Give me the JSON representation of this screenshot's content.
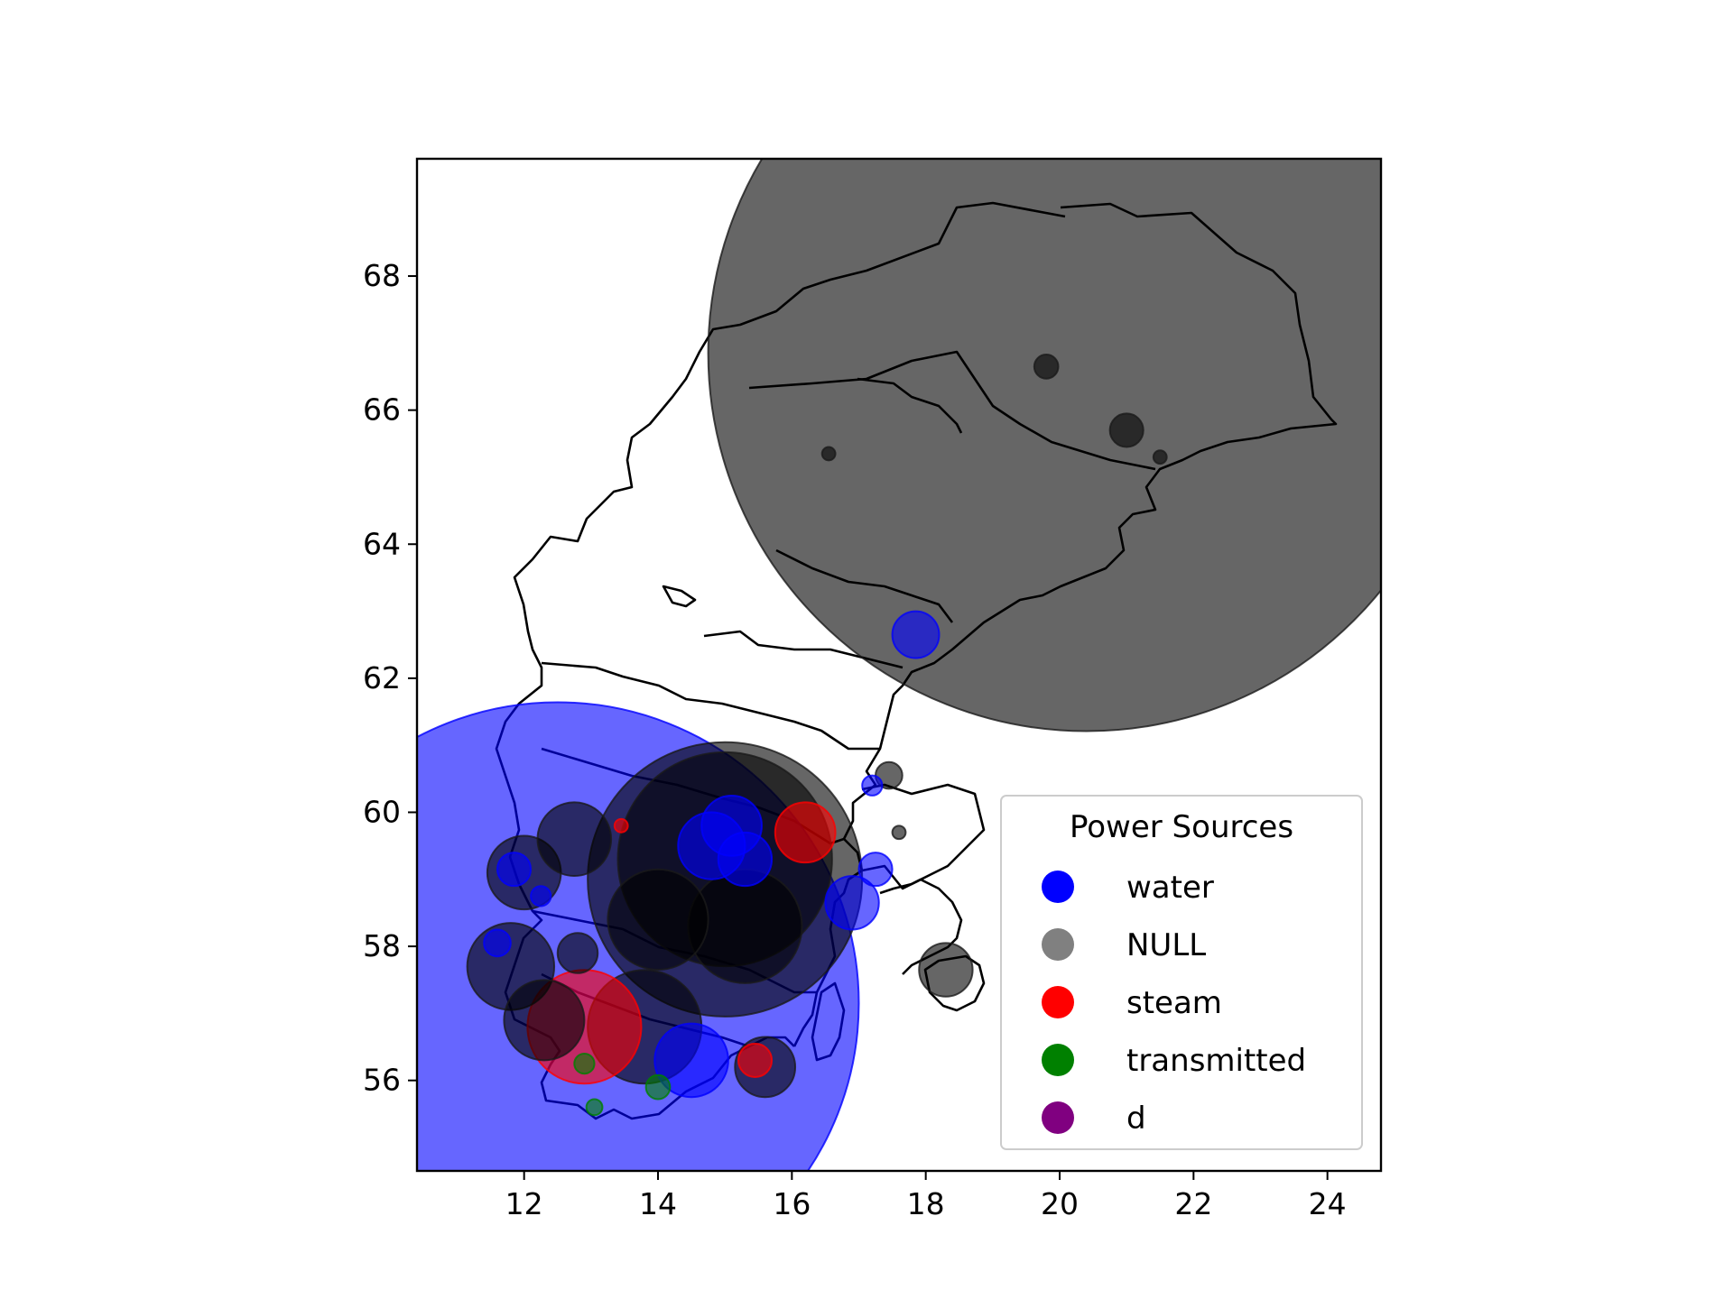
{
  "chart_data": {
    "type": "scatter",
    "xlim": [
      10.4,
      24.8
    ],
    "ylim": [
      54.65,
      69.75
    ],
    "x_ticks": [
      "12",
      "14",
      "16",
      "18",
      "20",
      "22",
      "24"
    ],
    "y_ticks": [
      "56",
      "58",
      "60",
      "62",
      "64",
      "66",
      "68"
    ],
    "grid": false,
    "legend": {
      "title": "Power Sources",
      "placement": "lower-right",
      "entries": [
        {
          "label": "water",
          "color": "#0000ff"
        },
        {
          "label": "NULL",
          "color": "#808080"
        },
        {
          "label": "steam",
          "color": "#ff0000"
        },
        {
          "label": "transmitted",
          "color": "#008000"
        },
        {
          "label": "d",
          "color": "#800080"
        }
      ]
    },
    "points": [
      {
        "x": 20.4,
        "y": 66.85,
        "r": 5.65,
        "source": "NULL"
      },
      {
        "x": 12.5,
        "y": 57.15,
        "r": 4.5,
        "source": "water"
      },
      {
        "x": 15.0,
        "y": 59.0,
        "r": 2.05,
        "source": "NULL"
      },
      {
        "x": 15.0,
        "y": 59.3,
        "r": 1.6,
        "source": "NULL"
      },
      {
        "x": 14.0,
        "y": 58.4,
        "r": 0.75,
        "source": "NULL"
      },
      {
        "x": 15.3,
        "y": 58.3,
        "r": 0.85,
        "source": "NULL"
      },
      {
        "x": 12.0,
        "y": 59.1,
        "r": 0.55,
        "source": "NULL"
      },
      {
        "x": 12.75,
        "y": 59.6,
        "r": 0.55,
        "source": "NULL"
      },
      {
        "x": 11.8,
        "y": 57.7,
        "r": 0.65,
        "source": "NULL"
      },
      {
        "x": 12.3,
        "y": 56.9,
        "r": 0.6,
        "source": "NULL"
      },
      {
        "x": 13.8,
        "y": 56.8,
        "r": 0.85,
        "source": "NULL"
      },
      {
        "x": 12.8,
        "y": 57.9,
        "r": 0.3,
        "source": "NULL"
      },
      {
        "x": 14.8,
        "y": 59.5,
        "r": 0.5,
        "source": "water"
      },
      {
        "x": 15.1,
        "y": 59.8,
        "r": 0.45,
        "source": "water"
      },
      {
        "x": 15.3,
        "y": 59.3,
        "r": 0.4,
        "source": "water"
      },
      {
        "x": 14.5,
        "y": 56.3,
        "r": 0.55,
        "source": "water"
      },
      {
        "x": 16.9,
        "y": 58.65,
        "r": 0.4,
        "source": "water"
      },
      {
        "x": 17.85,
        "y": 62.65,
        "r": 0.35,
        "source": "water"
      },
      {
        "x": 17.25,
        "y": 59.15,
        "r": 0.25,
        "source": "water"
      },
      {
        "x": 11.85,
        "y": 59.15,
        "r": 0.25,
        "source": "water"
      },
      {
        "x": 12.9,
        "y": 56.8,
        "r": 0.85,
        "source": "steam"
      },
      {
        "x": 16.2,
        "y": 59.7,
        "r": 0.45,
        "source": "steam"
      },
      {
        "x": 15.45,
        "y": 56.3,
        "r": 0.25,
        "source": "steam"
      },
      {
        "x": 15.6,
        "y": 56.2,
        "r": 0.45,
        "source": "NULL"
      },
      {
        "x": 18.3,
        "y": 57.65,
        "r": 0.4,
        "source": "NULL"
      },
      {
        "x": 21.0,
        "y": 65.7,
        "r": 0.25,
        "source": "NULL"
      },
      {
        "x": 19.8,
        "y": 66.65,
        "r": 0.18,
        "source": "NULL"
      },
      {
        "x": 17.45,
        "y": 60.55,
        "r": 0.2,
        "source": "NULL"
      },
      {
        "x": 14.0,
        "y": 55.9,
        "r": 0.18,
        "source": "transmitted"
      },
      {
        "x": 12.9,
        "y": 56.25,
        "r": 0.15,
        "source": "transmitted"
      },
      {
        "x": 13.05,
        "y": 55.6,
        "r": 0.12,
        "source": "transmitted"
      },
      {
        "x": 12.25,
        "y": 58.75,
        "r": 0.15,
        "source": "water"
      },
      {
        "x": 11.6,
        "y": 58.05,
        "r": 0.2,
        "source": "water"
      },
      {
        "x": 17.2,
        "y": 60.4,
        "r": 0.15,
        "source": "water"
      },
      {
        "x": 13.45,
        "y": 59.8,
        "r": 0.1,
        "source": "steam"
      },
      {
        "x": 16.55,
        "y": 65.35,
        "r": 0.1,
        "source": "NULL"
      },
      {
        "x": 21.5,
        "y": 65.3,
        "r": 0.1,
        "source": "NULL"
      },
      {
        "x": 17.6,
        "y": 59.7,
        "r": 0.1,
        "source": "NULL"
      }
    ]
  }
}
